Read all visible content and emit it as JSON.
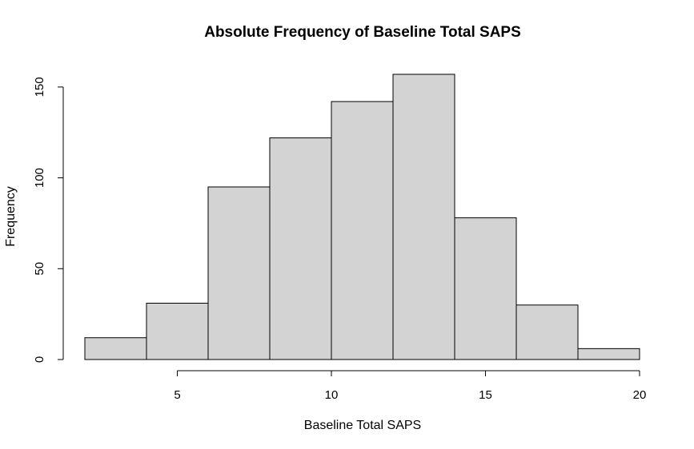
{
  "chart_data": {
    "type": "bar",
    "title": "Absolute Frequency of Baseline Total SAPS",
    "xlabel": "Baseline Total SAPS",
    "ylabel": "Frequency",
    "bins": [
      {
        "start": 2,
        "end": 4,
        "count": 12
      },
      {
        "start": 4,
        "end": 6,
        "count": 31
      },
      {
        "start": 6,
        "end": 8,
        "count": 95
      },
      {
        "start": 8,
        "end": 10,
        "count": 122
      },
      {
        "start": 10,
        "end": 12,
        "count": 142
      },
      {
        "start": 12,
        "end": 14,
        "count": 157
      },
      {
        "start": 14,
        "end": 16,
        "count": 78
      },
      {
        "start": 16,
        "end": 18,
        "count": 30
      },
      {
        "start": 18,
        "end": 20,
        "count": 6
      }
    ],
    "xlim": [
      2,
      20
    ],
    "ylim": [
      0,
      157
    ],
    "x_ticks": [
      5,
      10,
      15,
      20
    ],
    "y_ticks": [
      0,
      50,
      100,
      150
    ],
    "bar_color": "#d3d3d3",
    "edge_color": "#000000",
    "grid": false,
    "legend": "none"
  }
}
